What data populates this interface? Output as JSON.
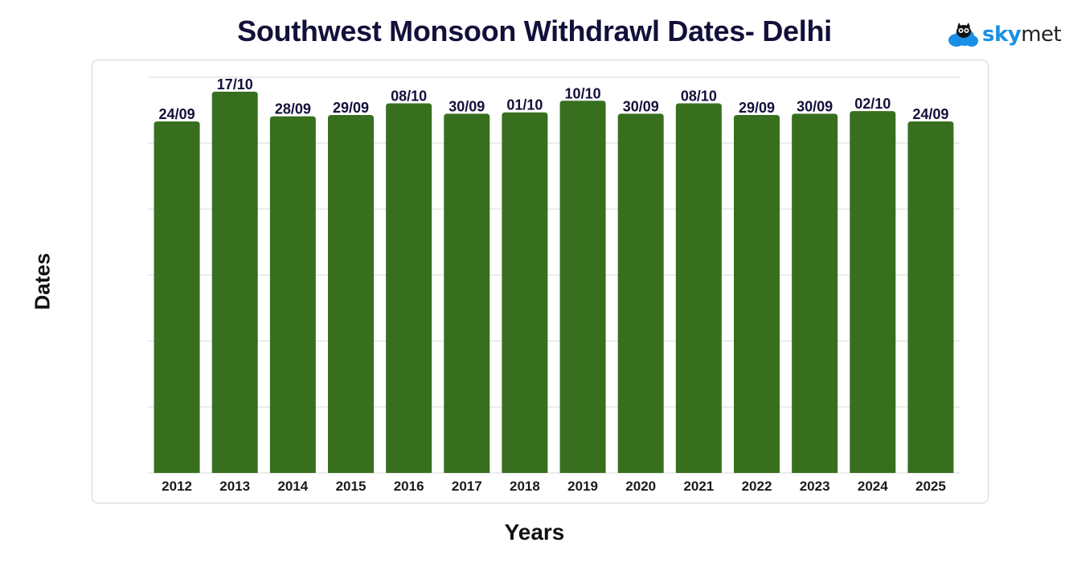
{
  "header": {
    "title": "Southwest Monsoon Withdrawl Dates- Delhi",
    "logo_sky": "sky",
    "logo_met": "met"
  },
  "colors": {
    "bar": "#376f1f",
    "title": "#13103a",
    "logo_blue": "#1a8fe6",
    "grid": "#d9d9d9"
  },
  "chart_data": {
    "type": "bar",
    "title": "Southwest Monsoon Withdrawl Dates- Delhi",
    "xlabel": "Years",
    "ylabel": "Dates",
    "grid": true,
    "categories": [
      "2012",
      "2013",
      "2014",
      "2015",
      "2016",
      "2017",
      "2018",
      "2019",
      "2020",
      "2021",
      "2022",
      "2023",
      "2024",
      "2025"
    ],
    "labels": [
      "24/09",
      "17/10",
      "28/09",
      "29/09",
      "08/10",
      "30/09",
      "01/10",
      "10/10",
      "30/09",
      "08/10",
      "29/09",
      "30/09",
      "02/10",
      "24/09"
    ],
    "values": [
      "2024-09-24",
      "2024-10-17",
      "2024-09-28",
      "2024-09-29",
      "2024-10-08",
      "2024-09-30",
      "2024-10-01",
      "2024-10-10",
      "2024-09-30",
      "2024-10-08",
      "2024-09-29",
      "2024-09-30",
      "2024-10-02",
      "2024-09-24"
    ]
  }
}
